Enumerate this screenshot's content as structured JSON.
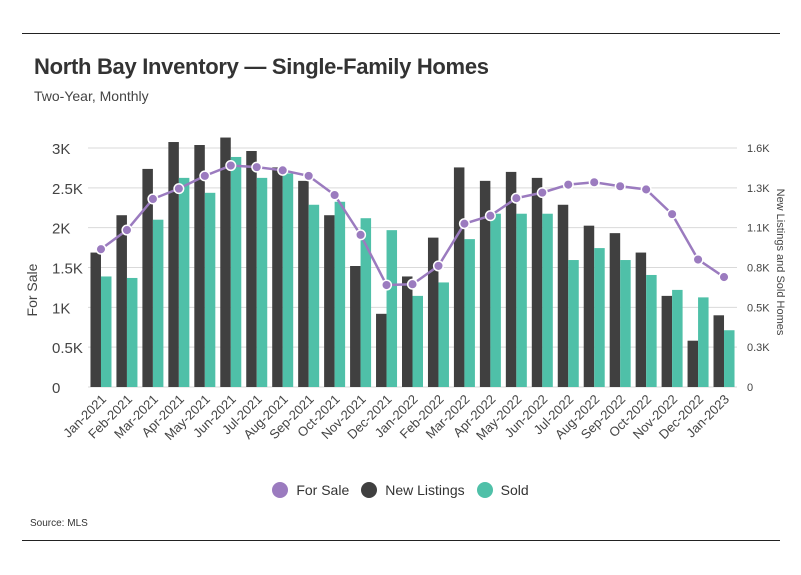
{
  "title": "North Bay Inventory — Single-Family Homes",
  "subtitle": "Two-Year, Monthly",
  "source": "Source: MLS",
  "colors": {
    "for_sale": "#9b7bbf",
    "new_listings": "#404040",
    "sold": "#4fc0a8",
    "grid": "#d9d9d9"
  },
  "chart_data": {
    "type": "bar",
    "categories": [
      "Jan-2021",
      "Feb-2021",
      "Mar-2021",
      "Apr-2021",
      "May-2021",
      "Jun-2021",
      "Jul-2021",
      "Aug-2021",
      "Sep-2021",
      "Oct-2021",
      "Nov-2021",
      "Dec-2021",
      "Jan-2022",
      "Feb-2022",
      "Mar-2022",
      "Apr-2022",
      "May-2022",
      "Jun-2022",
      "Jul-2022",
      "Aug-2022",
      "Sep-2022",
      "Oct-2022",
      "Nov-2022",
      "Dec-2022",
      "Jan-2023"
    ],
    "series": [
      {
        "name": "For Sale",
        "type": "line",
        "axis": "left",
        "values": [
          1730,
          1970,
          2360,
          2490,
          2650,
          2780,
          2760,
          2720,
          2650,
          2410,
          1910,
          1280,
          1290,
          1520,
          2050,
          2150,
          2370,
          2440,
          2540,
          2570,
          2520,
          2480,
          2170,
          1600,
          1380
        ]
      },
      {
        "name": "New Listings",
        "type": "bar",
        "axis": "right",
        "values": [
          900,
          1150,
          1460,
          1640,
          1620,
          1670,
          1580,
          1470,
          1380,
          1150,
          810,
          490,
          740,
          1000,
          1470,
          1380,
          1440,
          1400,
          1220,
          1080,
          1030,
          900,
          610,
          310,
          480
        ]
      },
      {
        "name": "Sold",
        "type": "bar",
        "axis": "right",
        "values": [
          740,
          730,
          1120,
          1400,
          1300,
          1540,
          1400,
          1430,
          1220,
          1240,
          1130,
          1050,
          610,
          700,
          990,
          1160,
          1160,
          1160,
          850,
          930,
          850,
          750,
          650,
          600,
          380
        ]
      }
    ],
    "ylabel": "For Sale",
    "y2label": "New Listings and Sold Homes",
    "ylim": [
      0,
      3000
    ],
    "y2lim": [
      0,
      1600
    ],
    "yticks": [
      "0",
      "0.5K",
      "1K",
      "1.5K",
      "2K",
      "2.5K",
      "3K"
    ],
    "y2ticks": [
      "0",
      "0.3K",
      "0.5K",
      "0.8K",
      "1.1K",
      "1.3K",
      "1.6K"
    ],
    "grid": true,
    "legend": "bottom-center"
  }
}
